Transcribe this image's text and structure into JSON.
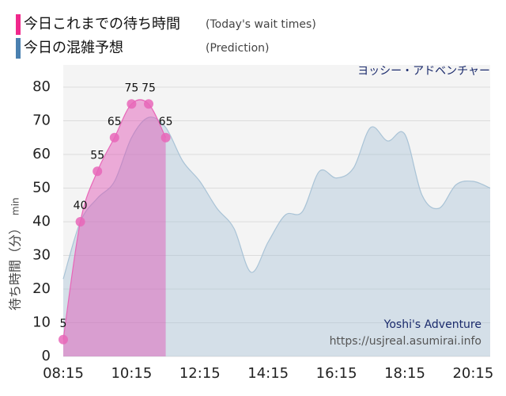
{
  "chart_data": {
    "type": "area",
    "legend": [
      {
        "label": "今日これまでの待ち時間",
        "note": "(Today's wait times)",
        "color": "#f0288c"
      },
      {
        "label": "今日の混雑予想",
        "note": "(Prediction)",
        "color": "#4a80b0"
      }
    ],
    "attraction": "ヨッシー・アドベンチャー",
    "watermark": [
      "Yoshi's Adventure",
      "https://usjreal.asumirai.info"
    ],
    "y_label": "待ち時間（分）",
    "y_unit": "min",
    "xlim": [
      "08:15",
      "20:45"
    ],
    "xticks": [
      "08:15",
      "10:15",
      "12:15",
      "14:15",
      "16:15",
      "18:15",
      "20:15"
    ],
    "ylim": [
      0,
      80
    ],
    "yticks": [
      0,
      10,
      20,
      30,
      40,
      50,
      60,
      70,
      80
    ],
    "grid": true,
    "series": [
      {
        "name": "今日の混雑予想",
        "color": "#a9c3d6",
        "x": [
          "08:15",
          "08:45",
          "09:15",
          "09:45",
          "10:15",
          "10:45",
          "11:15",
          "11:45",
          "12:15",
          "12:45",
          "13:15",
          "13:45",
          "14:15",
          "14:45",
          "15:15",
          "15:45",
          "16:15",
          "16:45",
          "17:15",
          "17:45",
          "18:15",
          "18:45",
          "19:15",
          "19:45",
          "20:15",
          "20:45"
        ],
        "values": [
          23,
          40,
          47,
          52,
          65,
          71,
          68,
          58,
          52,
          44,
          38,
          25,
          34,
          42,
          43,
          55,
          53,
          56,
          68,
          64,
          66,
          48,
          44,
          51,
          52,
          50
        ]
      },
      {
        "name": "今日これまでの待ち時間",
        "color": "#e866b8",
        "x": [
          "08:15",
          "08:45",
          "09:15",
          "09:45",
          "10:15",
          "10:45",
          "11:15"
        ],
        "values": [
          5,
          40,
          55,
          65,
          75,
          75,
          65
        ]
      }
    ]
  }
}
